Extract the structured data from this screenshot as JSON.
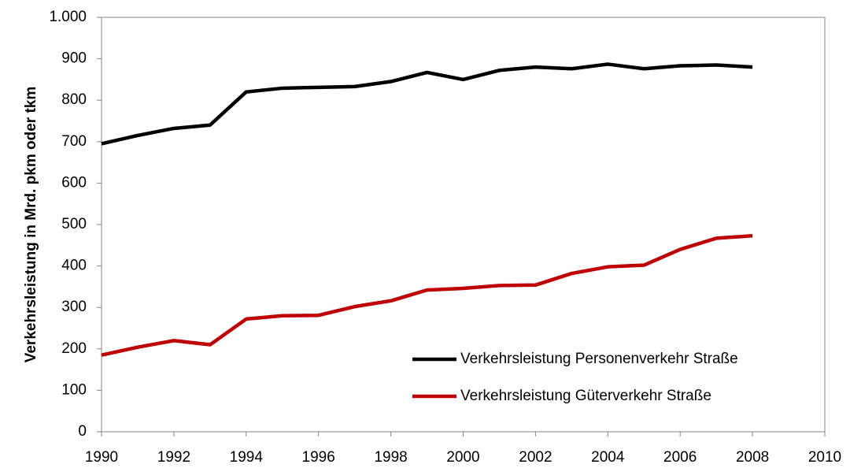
{
  "chart_data": {
    "type": "line",
    "y_label": "Verkehrsleistung in Mrd. pkm oder tkm",
    "x": [
      1990,
      1991,
      1992,
      1993,
      1994,
      1995,
      1996,
      1997,
      1998,
      1999,
      2000,
      2001,
      2002,
      2003,
      2004,
      2005,
      2006,
      2007,
      2008
    ],
    "series": [
      {
        "name": "Verkehrsleistung Personenverkehr Straße",
        "color": "#000000",
        "values": [
          695,
          715,
          732,
          740,
          820,
          829,
          831,
          833,
          845,
          867,
          850,
          872,
          880,
          876,
          887,
          876,
          883,
          885,
          880
        ]
      },
      {
        "name": "Verkehrsleistung Güterverkehr Straße",
        "color": "#c00000",
        "values": [
          185,
          204,
          220,
          210,
          272,
          280,
          281,
          302,
          316,
          342,
          346,
          353,
          354,
          382,
          398,
          402,
          440,
          467,
          473
        ]
      }
    ],
    "xlim": [
      1990,
      2010
    ],
    "xticks": [
      1990,
      1992,
      1994,
      1996,
      1998,
      2000,
      2002,
      2004,
      2006,
      2008,
      2010
    ],
    "ylim": [
      0,
      1000
    ],
    "yticks": [
      0,
      100,
      200,
      300,
      400,
      500,
      600,
      700,
      800,
      900,
      {
        "value": 1000,
        "label": "1.000"
      }
    ],
    "grid": false,
    "legend": "lower right"
  }
}
